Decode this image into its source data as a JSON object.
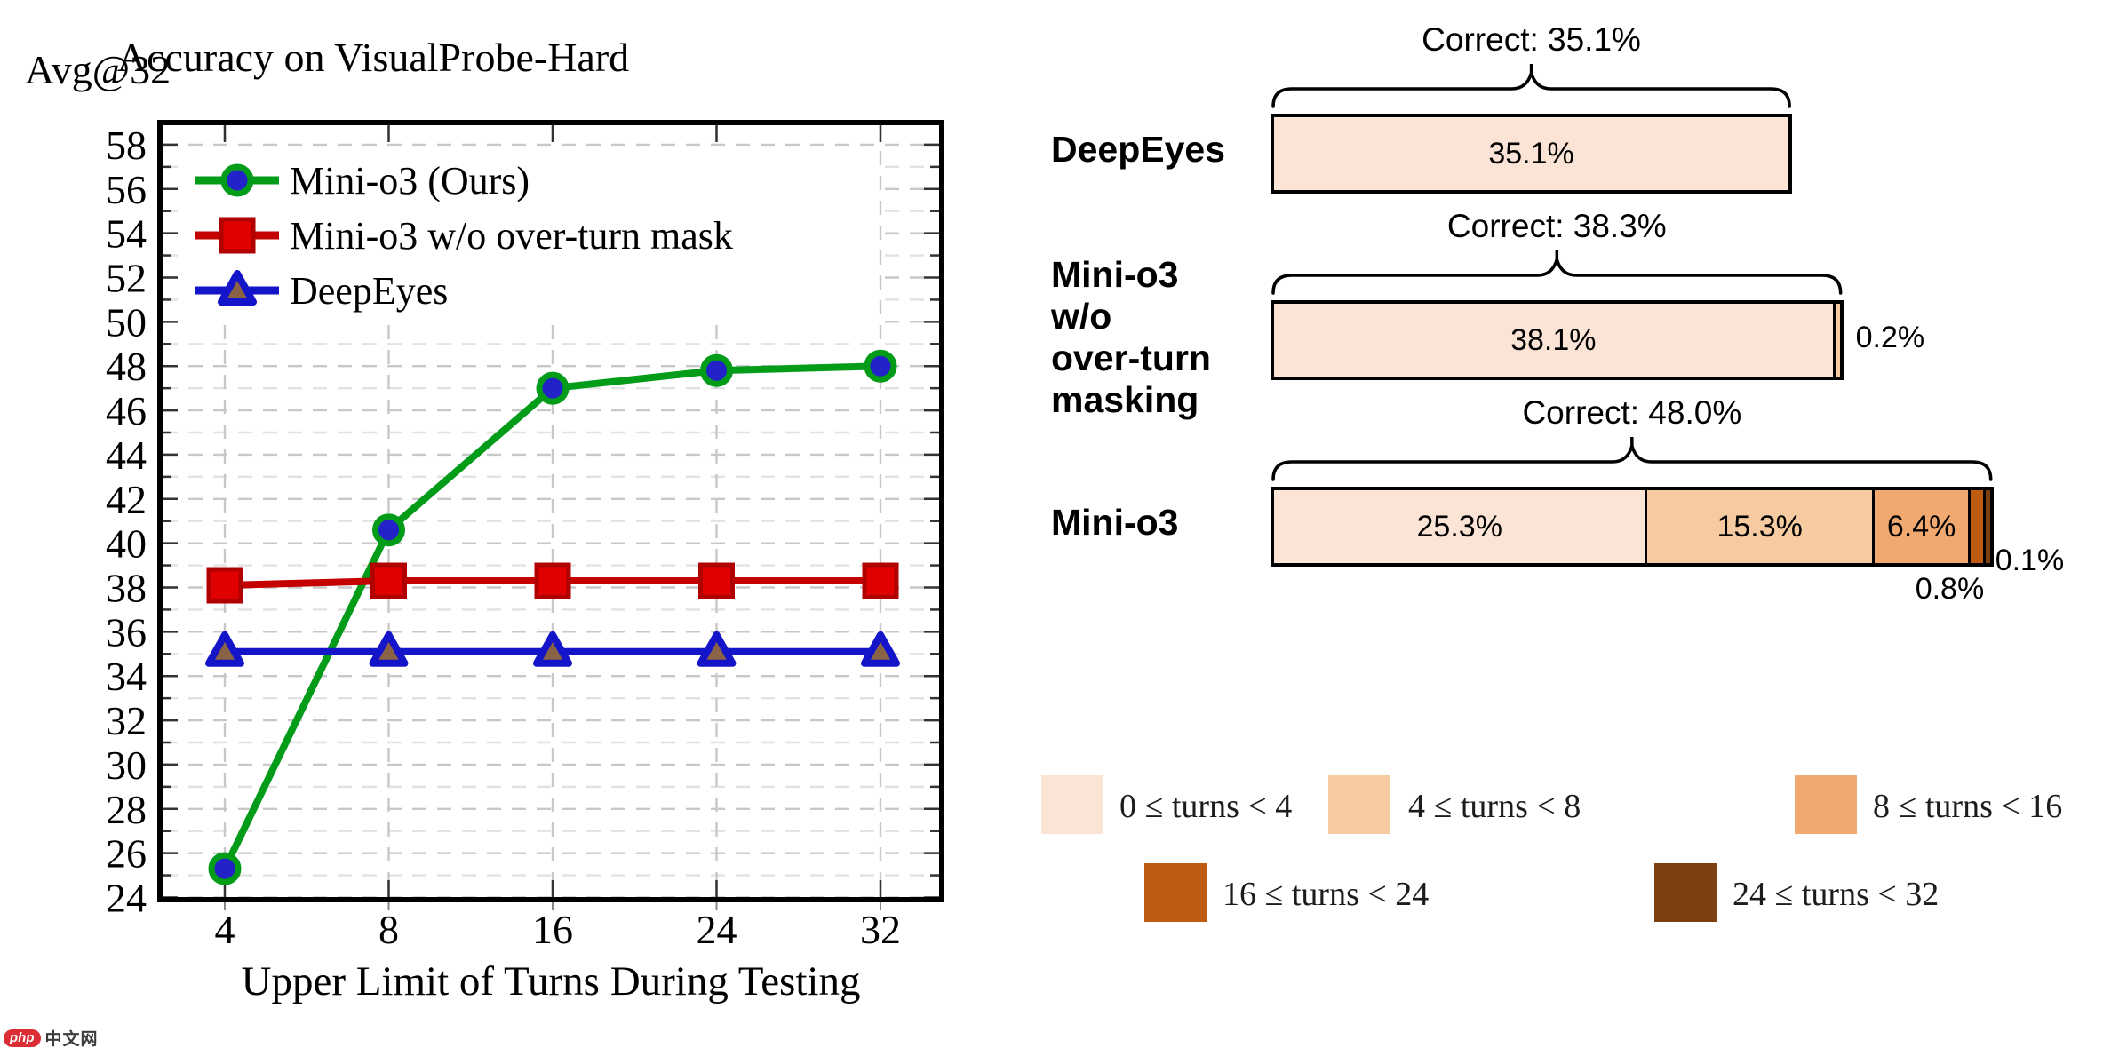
{
  "watermark": {
    "badge": "php",
    "text": "中文网"
  },
  "chart_data": [
    {
      "type": "line",
      "title": "Accuracy on VisualProbe-Hard",
      "y_axis_title": "Avg@32",
      "x_axis_title": "Upper Limit of Turns During Testing",
      "x_tick_labels": [
        "4",
        "8",
        "16",
        "24",
        "32"
      ],
      "ylim": [
        24,
        58
      ],
      "y_tick_step": 2,
      "grid": "dashed",
      "legend_position": "upper-left",
      "series": [
        {
          "name": "Mini-o3 (Ours)",
          "marker": "circle",
          "line_color": "#029C19",
          "marker_fill": "#2222C8",
          "marker_edge": "#029C19",
          "values": [
            25.3,
            40.6,
            47.0,
            47.8,
            48.0
          ]
        },
        {
          "name": "Mini-o3 w/o over-turn mask",
          "marker": "square",
          "line_color": "#C40000",
          "marker_fill": "#E00000",
          "marker_edge": "#B00000",
          "values": [
            38.1,
            38.3,
            38.3,
            38.3,
            38.3
          ]
        },
        {
          "name": "DeepEyes",
          "marker": "triangle",
          "line_color": "#1414C8",
          "marker_fill": "#8A6246",
          "marker_edge": "#1414C8",
          "values": [
            35.1,
            35.1,
            35.1,
            35.1,
            35.1
          ]
        }
      ]
    },
    {
      "type": "stacked-bar",
      "unit": "percent",
      "categories": [
        "0 ≤ turns < 4",
        "4 ≤ turns < 8",
        "8 ≤ turns < 16",
        "16 ≤ turns < 24",
        "24 ≤ turns < 32"
      ],
      "palette": [
        "#FBE4D5",
        "#F6CBA2",
        "#F1A96F",
        "#C05C11",
        "#7B3F10"
      ],
      "bars": [
        {
          "label_lines": [
            "DeepEyes"
          ],
          "correct_label": "Correct: 35.1%",
          "correct": 35.1,
          "segments": [
            {
              "category_index": 0,
              "value": 35.1,
              "label": "35.1%",
              "label_pos": "inside"
            }
          ]
        },
        {
          "label_lines": [
            "Mini-o3",
            "w/o",
            "over-turn",
            "masking"
          ],
          "correct_label": "Correct: 38.3%",
          "correct": 38.3,
          "segments": [
            {
              "category_index": 0,
              "value": 38.1,
              "label": "38.1%",
              "label_pos": "inside"
            },
            {
              "category_index": 1,
              "value": 0.2,
              "label": "0.2%",
              "label_pos": "right"
            }
          ]
        },
        {
          "label_lines": [
            "Mini-o3"
          ],
          "correct_label": "Correct: 48.0%",
          "correct": 48.0,
          "segments": [
            {
              "category_index": 0,
              "value": 25.3,
              "label": "25.3%",
              "label_pos": "inside"
            },
            {
              "category_index": 1,
              "value": 15.3,
              "label": "15.3%",
              "label_pos": "inside"
            },
            {
              "category_index": 2,
              "value": 6.4,
              "label": "6.4%",
              "label_pos": "inside"
            },
            {
              "category_index": 3,
              "value": 0.8,
              "label": "0.8%",
              "label_pos": "below"
            },
            {
              "category_index": 4,
              "value": 0.1,
              "label": "0.1%",
              "label_pos": "corner"
            }
          ]
        }
      ]
    }
  ]
}
